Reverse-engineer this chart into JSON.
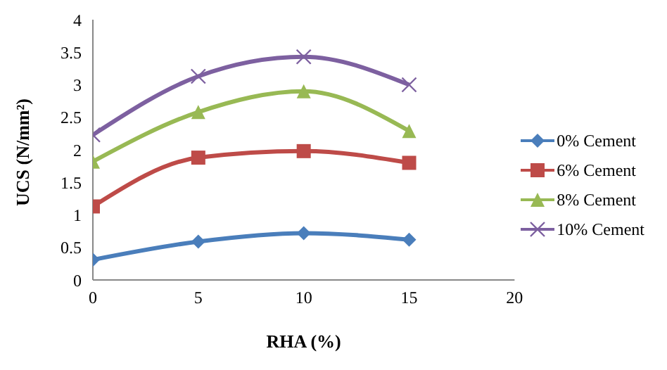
{
  "chart_data": {
    "type": "line",
    "xlabel": "RHA (%)",
    "ylabel": "UCS (N/mm²)",
    "x": [
      0,
      5,
      10,
      15
    ],
    "series": [
      {
        "name": "0% Cement",
        "color": "#4a7ebb",
        "marker": "diamond",
        "values": [
          0.31,
          0.59,
          0.72,
          0.62
        ]
      },
      {
        "name": "6% Cement",
        "color": "#be4b48",
        "marker": "square",
        "values": [
          1.13,
          1.88,
          1.98,
          1.8
        ]
      },
      {
        "name": "8% Cement",
        "color": "#98b954",
        "marker": "triangle",
        "values": [
          1.82,
          2.58,
          2.9,
          2.29
        ]
      },
      {
        "name": "10% Cement",
        "color": "#7d60a0",
        "marker": "cross",
        "values": [
          2.23,
          3.13,
          3.43,
          3.0
        ]
      }
    ],
    "xlim": [
      0,
      20
    ],
    "xticks": [
      0,
      5,
      10,
      15,
      20
    ],
    "ylim": [
      0,
      4
    ],
    "yticks": [
      0,
      0.5,
      1,
      1.5,
      2,
      2.5,
      3,
      3.5,
      4
    ],
    "grid": false,
    "legend": "right"
  }
}
